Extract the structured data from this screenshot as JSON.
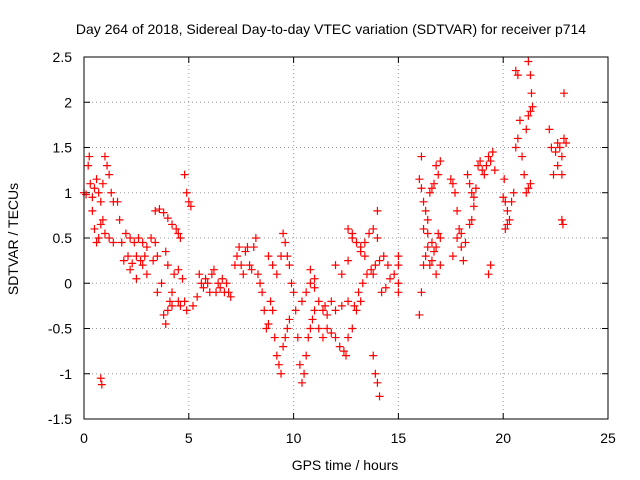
{
  "chart_data": {
    "type": "scatter",
    "title": "Day 264 of 2018, Sidereal Day-to-day VTEC variation (SDTVAR) for receiver p714",
    "xlabel": "GPS time / hours",
    "ylabel": "SDTVAR / TECUs",
    "xlim": [
      0,
      25
    ],
    "ylim": [
      -1.5,
      2.5
    ],
    "xticks": [
      0,
      5,
      10,
      15,
      20,
      25
    ],
    "yticks": [
      -1.5,
      -1,
      -0.5,
      0,
      0.5,
      1,
      1.5,
      2,
      2.5
    ],
    "xtick_labels": [
      "0",
      "5",
      "10",
      "15",
      "20",
      "25"
    ],
    "ytick_labels": [
      "-1.5",
      "-1",
      "-0.5",
      "0",
      "0.5",
      "1",
      "1.5",
      "2",
      "2.5"
    ],
    "grid": true,
    "marker": "+",
    "colors": {
      "series": "#ff0000",
      "grid": "#999999",
      "axis": "#000000"
    },
    "series": [
      {
        "name": "p714",
        "points": [
          [
            0.0,
            1.0
          ],
          [
            0.1,
            0.98
          ],
          [
            0.2,
            1.3
          ],
          [
            0.25,
            1.4
          ],
          [
            0.3,
            1.1
          ],
          [
            0.4,
            0.95
          ],
          [
            0.5,
            1.05
          ],
          [
            0.6,
            1.15
          ],
          [
            0.7,
            1.0
          ],
          [
            0.8,
            0.9
          ],
          [
            0.9,
            1.1
          ],
          [
            1.0,
            1.4
          ],
          [
            1.1,
            1.3
          ],
          [
            1.2,
            1.2
          ],
          [
            1.3,
            1.0
          ],
          [
            1.4,
            0.9
          ],
          [
            0.4,
            0.8
          ],
          [
            0.5,
            0.6
          ],
          [
            0.6,
            0.45
          ],
          [
            0.7,
            0.5
          ],
          [
            0.8,
            0.65
          ],
          [
            0.9,
            0.7
          ],
          [
            1.0,
            0.55
          ],
          [
            1.2,
            0.5
          ],
          [
            1.4,
            0.45
          ],
          [
            1.6,
            0.9
          ],
          [
            1.7,
            0.7
          ],
          [
            0.8,
            -1.05
          ],
          [
            0.85,
            -1.12
          ],
          [
            1.8,
            0.45
          ],
          [
            2.0,
            0.55
          ],
          [
            2.2,
            0.5
          ],
          [
            2.4,
            0.45
          ],
          [
            2.6,
            0.5
          ],
          [
            2.8,
            0.45
          ],
          [
            3.0,
            0.4
          ],
          [
            3.2,
            0.5
          ],
          [
            3.4,
            0.45
          ],
          [
            1.9,
            0.25
          ],
          [
            2.1,
            0.3
          ],
          [
            2.3,
            0.22
          ],
          [
            2.5,
            0.3
          ],
          [
            2.7,
            0.25
          ],
          [
            2.9,
            0.3
          ],
          [
            2.2,
            0.15
          ],
          [
            2.5,
            0.05
          ],
          [
            2.8,
            0.2
          ],
          [
            3.0,
            0.1
          ],
          [
            3.3,
            0.25
          ],
          [
            3.5,
            0.3
          ],
          [
            3.5,
            -0.1
          ],
          [
            3.7,
            0.0
          ],
          [
            3.8,
            -0.35
          ],
          [
            3.9,
            -0.45
          ],
          [
            4.0,
            -0.3
          ],
          [
            4.1,
            -0.2
          ],
          [
            4.2,
            -0.25
          ],
          [
            3.4,
            0.8
          ],
          [
            3.6,
            0.82
          ],
          [
            3.8,
            0.78
          ],
          [
            4.0,
            0.72
          ],
          [
            4.2,
            0.65
          ],
          [
            4.4,
            0.6
          ],
          [
            4.5,
            0.55
          ],
          [
            4.6,
            0.5
          ],
          [
            3.9,
            0.35
          ],
          [
            4.0,
            0.2
          ],
          [
            4.3,
            0.1
          ],
          [
            4.5,
            0.15
          ],
          [
            4.7,
            0.05
          ],
          [
            4.2,
            -0.1
          ],
          [
            4.5,
            -0.2
          ],
          [
            4.6,
            -0.25
          ],
          [
            4.8,
            -0.2
          ],
          [
            4.9,
            -0.3
          ],
          [
            4.8,
            1.2
          ],
          [
            4.9,
            1.0
          ],
          [
            5.0,
            0.9
          ],
          [
            5.1,
            0.85
          ],
          [
            5.2,
            -0.25
          ],
          [
            5.4,
            -0.15
          ],
          [
            5.5,
            0.1
          ],
          [
            5.6,
            0.0
          ],
          [
            5.7,
            -0.05
          ],
          [
            5.8,
            0.05
          ],
          [
            5.9,
            0.0
          ],
          [
            6.0,
            -0.1
          ],
          [
            6.1,
            0.1
          ],
          [
            6.2,
            0.15
          ],
          [
            6.3,
            -0.1
          ],
          [
            6.4,
            0.0
          ],
          [
            6.5,
            -0.05
          ],
          [
            6.6,
            0.05
          ],
          [
            6.7,
            -0.1
          ],
          [
            6.8,
            0.0
          ],
          [
            6.9,
            -0.1
          ],
          [
            7.0,
            -0.15
          ],
          [
            7.2,
            0.2
          ],
          [
            7.3,
            0.3
          ],
          [
            7.4,
            0.4
          ],
          [
            7.5,
            0.2
          ],
          [
            7.6,
            0.1
          ],
          [
            7.7,
            0.35
          ],
          [
            7.8,
            0.4
          ],
          [
            7.9,
            0.2
          ],
          [
            8.0,
            0.15
          ],
          [
            8.1,
            0.4
          ],
          [
            8.2,
            0.5
          ],
          [
            8.3,
            0.1
          ],
          [
            8.4,
            0.0
          ],
          [
            8.5,
            -0.1
          ],
          [
            8.6,
            -0.3
          ],
          [
            8.7,
            -0.5
          ],
          [
            8.8,
            -0.45
          ],
          [
            8.9,
            -0.2
          ],
          [
            9.0,
            -0.3
          ],
          [
            9.1,
            -0.6
          ],
          [
            9.2,
            -0.8
          ],
          [
            9.3,
            -0.9
          ],
          [
            9.4,
            -1.0
          ],
          [
            9.5,
            -0.7
          ],
          [
            9.6,
            -0.6
          ],
          [
            9.7,
            -0.5
          ],
          [
            9.8,
            -0.4
          ],
          [
            8.8,
            0.3
          ],
          [
            9.0,
            0.2
          ],
          [
            9.2,
            0.1
          ],
          [
            9.4,
            0.3
          ],
          [
            9.5,
            0.55
          ],
          [
            9.6,
            0.45
          ],
          [
            9.7,
            0.3
          ],
          [
            9.8,
            0.2
          ],
          [
            9.9,
            0.0
          ],
          [
            10.0,
            -0.1
          ],
          [
            10.1,
            -0.3
          ],
          [
            10.2,
            -0.6
          ],
          [
            10.3,
            -0.9
          ],
          [
            10.4,
            -1.1
          ],
          [
            10.5,
            -1.0
          ],
          [
            10.6,
            -0.8
          ],
          [
            10.7,
            -0.6
          ],
          [
            10.8,
            -0.5
          ],
          [
            10.9,
            -0.4
          ],
          [
            11.0,
            -0.3
          ],
          [
            10.4,
            -0.2
          ],
          [
            10.6,
            -0.1
          ],
          [
            10.8,
            0.0
          ],
          [
            11.0,
            0.05
          ],
          [
            11.2,
            -0.2
          ],
          [
            11.4,
            -0.3
          ],
          [
            11.6,
            -0.35
          ],
          [
            10.8,
            0.15
          ],
          [
            11.0,
            -0.05
          ],
          [
            11.2,
            -0.5
          ],
          [
            11.4,
            -0.6
          ],
          [
            11.6,
            -0.5
          ],
          [
            11.8,
            -0.55
          ],
          [
            12.0,
            -0.6
          ],
          [
            12.2,
            -0.7
          ],
          [
            12.4,
            -0.75
          ],
          [
            12.5,
            -0.8
          ],
          [
            12.6,
            -0.6
          ],
          [
            12.8,
            -0.5
          ],
          [
            13.0,
            -0.3
          ],
          [
            13.2,
            -0.2
          ],
          [
            11.5,
            -0.25
          ],
          [
            11.8,
            -0.2
          ],
          [
            12.0,
            -0.3
          ],
          [
            12.3,
            -0.25
          ],
          [
            12.6,
            -0.2
          ],
          [
            12.9,
            -0.25
          ],
          [
            13.1,
            -0.1
          ],
          [
            12.0,
            0.2
          ],
          [
            12.3,
            0.1
          ],
          [
            12.6,
            0.25
          ],
          [
            12.8,
            0.55
          ],
          [
            13.0,
            0.45
          ],
          [
            13.2,
            0.35
          ],
          [
            13.4,
            0.3
          ],
          [
            12.6,
            0.6
          ],
          [
            12.8,
            0.5
          ],
          [
            13.2,
            0.4
          ],
          [
            13.4,
            0.45
          ],
          [
            13.6,
            0.55
          ],
          [
            13.8,
            0.6
          ],
          [
            14.0,
            0.5
          ],
          [
            13.3,
            0.0
          ],
          [
            13.5,
            0.1
          ],
          [
            13.7,
            0.15
          ],
          [
            13.9,
            0.2
          ],
          [
            14.1,
            0.25
          ],
          [
            14.3,
            0.3
          ],
          [
            14.5,
            0.2
          ],
          [
            14.0,
            0.8
          ],
          [
            13.8,
            0.1
          ],
          [
            14.2,
            -0.1
          ],
          [
            14.4,
            -0.05
          ],
          [
            14.6,
            0.05
          ],
          [
            14.8,
            0.1
          ],
          [
            15.0,
            0.0
          ],
          [
            15.0,
            -0.1
          ],
          [
            15.0,
            0.2
          ],
          [
            15.0,
            0.3
          ],
          [
            13.8,
            -0.8
          ],
          [
            13.9,
            -1.0
          ],
          [
            14.0,
            -1.1
          ],
          [
            14.1,
            -1.25
          ],
          [
            16.0,
            -0.35
          ],
          [
            16.1,
            -0.1
          ],
          [
            16.2,
            0.2
          ],
          [
            16.3,
            0.3
          ],
          [
            16.4,
            0.4
          ],
          [
            16.5,
            0.2
          ],
          [
            16.6,
            0.25
          ],
          [
            16.7,
            0.35
          ],
          [
            16.8,
            0.4
          ],
          [
            16.9,
            0.55
          ],
          [
            17.0,
            0.5
          ],
          [
            16.1,
            1.4
          ],
          [
            16.2,
            0.9
          ],
          [
            16.3,
            0.8
          ],
          [
            16.4,
            0.7
          ],
          [
            16.5,
            1.0
          ],
          [
            16.6,
            1.05
          ],
          [
            16.7,
            1.1
          ],
          [
            16.8,
            1.3
          ],
          [
            16.9,
            1.2
          ],
          [
            17.0,
            1.35
          ],
          [
            16.0,
            1.15
          ],
          [
            16.1,
            1.05
          ],
          [
            16.2,
            0.6
          ],
          [
            16.4,
            0.55
          ],
          [
            16.6,
            0.45
          ],
          [
            16.8,
            0.1
          ],
          [
            17.0,
            0.2
          ],
          [
            17.5,
            1.15
          ],
          [
            17.6,
            1.1
          ],
          [
            17.7,
            1.0
          ],
          [
            17.8,
            0.8
          ],
          [
            17.9,
            0.6
          ],
          [
            18.0,
            0.4
          ],
          [
            18.1,
            0.25
          ],
          [
            17.6,
            0.3
          ],
          [
            17.8,
            0.5
          ],
          [
            18.0,
            0.55
          ],
          [
            18.2,
            0.45
          ],
          [
            18.4,
            0.65
          ],
          [
            18.5,
            0.7
          ],
          [
            18.6,
            0.85
          ],
          [
            18.3,
            1.2
          ],
          [
            18.4,
            1.1
          ],
          [
            18.5,
            1.0
          ],
          [
            18.6,
            0.95
          ],
          [
            18.7,
            1.05
          ],
          [
            18.8,
            1.3
          ],
          [
            18.9,
            1.35
          ],
          [
            19.0,
            1.25
          ],
          [
            19.1,
            1.2
          ],
          [
            19.2,
            1.3
          ],
          [
            19.3,
            1.4
          ],
          [
            19.4,
            1.35
          ],
          [
            19.5,
            1.45
          ],
          [
            19.6,
            1.25
          ],
          [
            19.3,
            0.1
          ],
          [
            19.4,
            0.2
          ],
          [
            20.0,
            0.95
          ],
          [
            20.05,
            1.15
          ],
          [
            20.1,
            0.9
          ],
          [
            20.2,
            0.8
          ],
          [
            20.3,
            0.7
          ],
          [
            20.1,
            0.6
          ],
          [
            20.2,
            0.65
          ],
          [
            20.4,
            0.9
          ],
          [
            20.5,
            1.0
          ],
          [
            20.6,
            1.5
          ],
          [
            20.7,
            1.6
          ],
          [
            20.8,
            1.8
          ],
          [
            20.6,
            2.35
          ],
          [
            20.7,
            2.3
          ],
          [
            20.9,
            1.4
          ],
          [
            21.0,
            1.2
          ],
          [
            21.1,
            1.0
          ],
          [
            21.2,
            1.05
          ],
          [
            21.3,
            1.1
          ],
          [
            21.2,
            2.45
          ],
          [
            21.3,
            2.3
          ],
          [
            21.35,
            2.1
          ],
          [
            21.4,
            1.95
          ],
          [
            21.3,
            1.9
          ],
          [
            21.2,
            1.85
          ],
          [
            21.1,
            1.7
          ],
          [
            22.2,
            1.7
          ],
          [
            22.3,
            1.5
          ],
          [
            22.4,
            1.2
          ],
          [
            22.5,
            1.45
          ],
          [
            22.6,
            1.3
          ],
          [
            22.8,
            1.2
          ],
          [
            22.9,
            2.1
          ],
          [
            22.6,
            1.55
          ],
          [
            22.7,
            1.5
          ],
          [
            22.8,
            1.4
          ],
          [
            22.9,
            1.6
          ],
          [
            23.0,
            1.55
          ],
          [
            22.8,
            0.7
          ],
          [
            22.85,
            0.65
          ]
        ]
      }
    ]
  }
}
